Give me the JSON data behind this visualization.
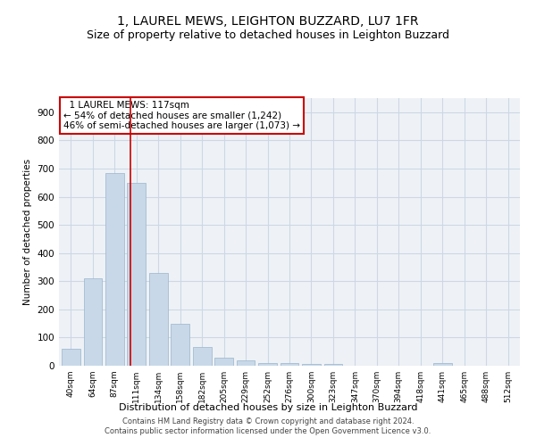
{
  "title_line1": "1, LAUREL MEWS, LEIGHTON BUZZARD, LU7 1FR",
  "title_line2": "Size of property relative to detached houses in Leighton Buzzard",
  "xlabel": "Distribution of detached houses by size in Leighton Buzzard",
  "ylabel": "Number of detached properties",
  "categories": [
    "40sqm",
    "64sqm",
    "87sqm",
    "111sqm",
    "134sqm",
    "158sqm",
    "182sqm",
    "205sqm",
    "229sqm",
    "252sqm",
    "276sqm",
    "300sqm",
    "323sqm",
    "347sqm",
    "370sqm",
    "394sqm",
    "418sqm",
    "441sqm",
    "465sqm",
    "488sqm",
    "512sqm"
  ],
  "values": [
    60,
    310,
    685,
    650,
    330,
    150,
    65,
    30,
    18,
    10,
    8,
    5,
    5,
    0,
    0,
    0,
    0,
    8,
    0,
    0,
    0
  ],
  "bar_color": "#c8d8e8",
  "bar_edge_color": "#9ab4cc",
  "vline_x": 2.72,
  "vline_color": "#cc0000",
  "annotation_text": "  1 LAUREL MEWS: 117sqm\n← 54% of detached houses are smaller (1,242)\n46% of semi-detached houses are larger (1,073) →",
  "annotation_box_color": "white",
  "annotation_box_edge_color": "#cc0000",
  "ylim": [
    0,
    950
  ],
  "yticks": [
    0,
    100,
    200,
    300,
    400,
    500,
    600,
    700,
    800,
    900
  ],
  "footer_line1": "Contains HM Land Registry data © Crown copyright and database right 2024.",
  "footer_line2": "Contains public sector information licensed under the Open Government Licence v3.0.",
  "title_fontsize": 10,
  "subtitle_fontsize": 9,
  "bar_width": 0.85,
  "grid_color": "#ccd8e4",
  "background_color": "#eef2f6"
}
